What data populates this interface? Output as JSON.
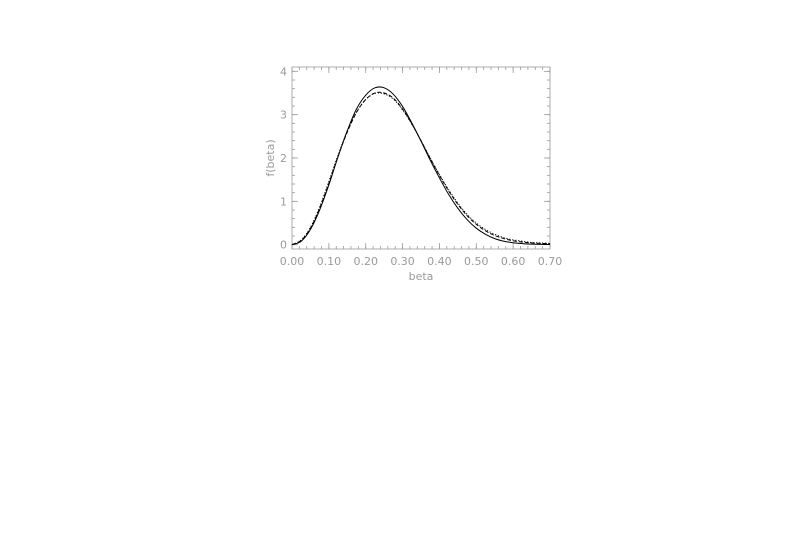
{
  "chart_data": {
    "type": "line",
    "title": "",
    "xlabel": "beta",
    "ylabel": "f(beta)",
    "xlim": [
      0.0,
      0.7
    ],
    "ylim": [
      -0.1,
      4.1
    ],
    "xticks": [
      0.0,
      0.1,
      0.2,
      0.3,
      0.4,
      0.5,
      0.6,
      0.7
    ],
    "xtick_labels": [
      "0.00",
      "0.10",
      "0.20",
      "0.30",
      "0.40",
      "0.50",
      "0.60",
      "0.70"
    ],
    "yticks": [
      0,
      1,
      2,
      3,
      4
    ],
    "ytick_labels": [
      "0",
      "1",
      "2",
      "3",
      "4"
    ],
    "grid": false,
    "series": [
      {
        "style": "solid",
        "x": [
          0.0,
          0.025,
          0.05,
          0.075,
          0.1,
          0.125,
          0.15,
          0.175,
          0.2,
          0.225,
          0.25,
          0.275,
          0.3,
          0.325,
          0.35,
          0.375,
          0.4,
          0.425,
          0.45,
          0.475,
          0.5,
          0.525,
          0.55,
          0.575,
          0.6,
          0.625,
          0.65,
          0.675,
          0.7
        ],
        "y": [
          0.0,
          0.08,
          0.35,
          0.8,
          1.38,
          2.03,
          2.63,
          3.13,
          3.45,
          3.62,
          3.62,
          3.47,
          3.19,
          2.81,
          2.39,
          1.95,
          1.54,
          1.16,
          0.84,
          0.58,
          0.38,
          0.24,
          0.14,
          0.08,
          0.045,
          0.025,
          0.012,
          0.006,
          0.003
        ]
      },
      {
        "style": "dashed",
        "x": [
          0.0,
          0.025,
          0.05,
          0.075,
          0.1,
          0.125,
          0.15,
          0.175,
          0.2,
          0.225,
          0.25,
          0.275,
          0.3,
          0.325,
          0.35,
          0.375,
          0.4,
          0.425,
          0.45,
          0.475,
          0.5,
          0.525,
          0.55,
          0.575,
          0.6,
          0.625,
          0.65,
          0.675,
          0.7
        ],
        "y": [
          0.0,
          0.1,
          0.38,
          0.84,
          1.42,
          2.04,
          2.6,
          3.05,
          3.35,
          3.5,
          3.5,
          3.38,
          3.13,
          2.79,
          2.4,
          1.99,
          1.6,
          1.24,
          0.93,
          0.67,
          0.47,
          0.32,
          0.21,
          0.14,
          0.09,
          0.06,
          0.04,
          0.03,
          0.02
        ]
      },
      {
        "style": "dotted",
        "x": [
          0.0,
          0.025,
          0.05,
          0.075,
          0.1,
          0.125,
          0.15,
          0.175,
          0.2,
          0.225,
          0.25,
          0.275,
          0.3,
          0.325,
          0.35,
          0.375,
          0.4,
          0.425,
          0.45,
          0.475,
          0.5,
          0.525,
          0.55,
          0.575,
          0.6,
          0.625,
          0.65,
          0.675,
          0.7
        ],
        "y": [
          0.0,
          0.11,
          0.4,
          0.87,
          1.46,
          2.07,
          2.62,
          3.06,
          3.35,
          3.49,
          3.48,
          3.36,
          3.11,
          2.78,
          2.4,
          2.0,
          1.62,
          1.27,
          0.96,
          0.7,
          0.5,
          0.35,
          0.24,
          0.16,
          0.11,
          0.08,
          0.05,
          0.04,
          0.03
        ]
      }
    ]
  }
}
